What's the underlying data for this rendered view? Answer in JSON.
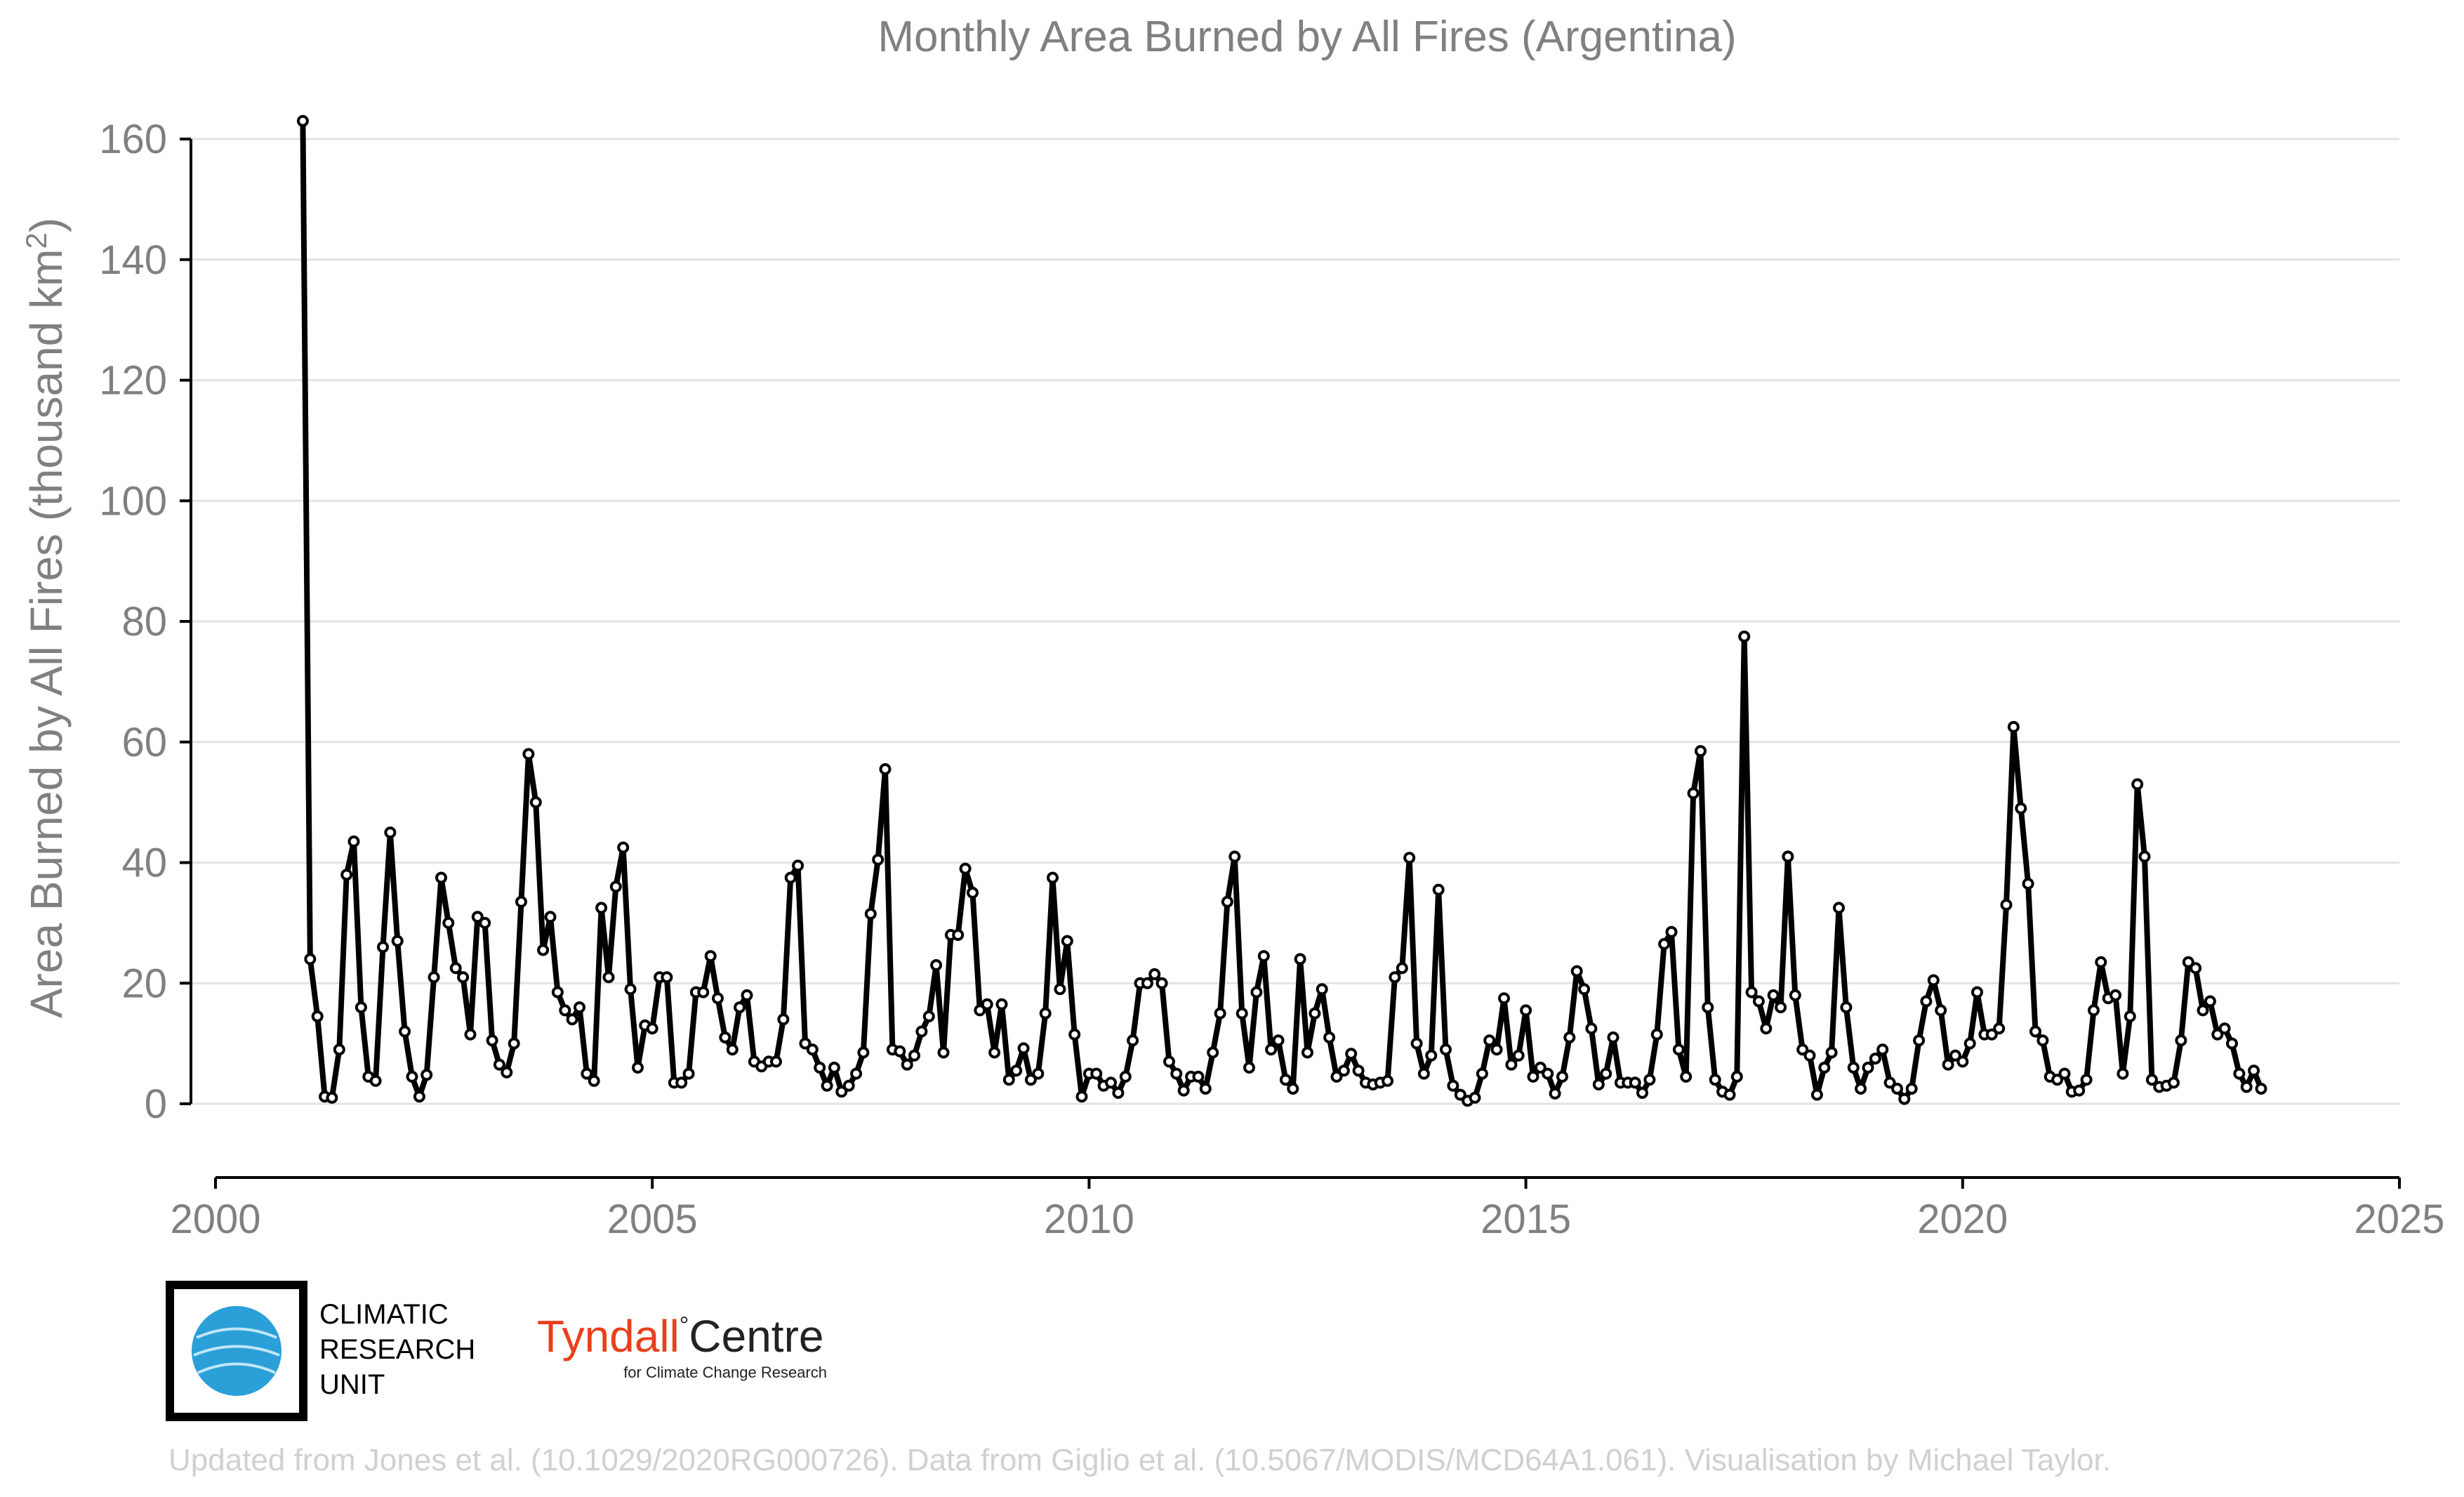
{
  "chart_data": {
    "type": "line",
    "title": "Monthly Area Burned by All Fires (Argentina)",
    "ylabel": "Area Burned by All Fires (thousand km²)",
    "xlabel": "",
    "xlim": [
      2000,
      2025
    ],
    "ylim": [
      -12,
      165
    ],
    "xticks": [
      2000,
      2005,
      2010,
      2015,
      2020,
      2025
    ],
    "yticks": [
      0,
      20,
      40,
      60,
      80,
      100,
      120,
      140,
      160
    ],
    "grid": true,
    "start_month": "2001-01",
    "series": [
      {
        "values": [
          163,
          24,
          14.5,
          1.2,
          1,
          9,
          38,
          43.5,
          16,
          4.5,
          3.8,
          26,
          45,
          27,
          12,
          4.5,
          1.2,
          4.8,
          21,
          37.5,
          30,
          22.5,
          21,
          11.5,
          31,
          30,
          10.5,
          6.5,
          5.2,
          10,
          33.5,
          58,
          50,
          25.5,
          31,
          18.5,
          15.5,
          14,
          16,
          5,
          3.8,
          32.5,
          21,
          36,
          42.5,
          19,
          6,
          13,
          12.5,
          21,
          21,
          3.5,
          3.5,
          5,
          18.5,
          18.5,
          24.5,
          17.5,
          11,
          9,
          16,
          18,
          7,
          6.2,
          7,
          7,
          14,
          37.5,
          39.5,
          10,
          9,
          6,
          3,
          6,
          2,
          3,
          5,
          8.5,
          31.5,
          40.5,
          55.5,
          9,
          8.7,
          6.5,
          8,
          12,
          14.5,
          23,
          8.5,
          28,
          28,
          39,
          35,
          15.5,
          16.5,
          8.5,
          16.5,
          4,
          5.5,
          9.2,
          4,
          5,
          15,
          37.5,
          19,
          27,
          11.5,
          1.2,
          5,
          5,
          3,
          3.5,
          1.8,
          4.5,
          10.5,
          20,
          20,
          21.5,
          20,
          7,
          5,
          2.2,
          4.5,
          4.5,
          2.5,
          8.5,
          15,
          33.5,
          41,
          15,
          6,
          18.5,
          24.5,
          9,
          10.5,
          4,
          2.5,
          24,
          8.5,
          15,
          19,
          11,
          4.5,
          5.5,
          8.3,
          5.5,
          3.5,
          3.2,
          3.5,
          3.8,
          21,
          22.5,
          40.8,
          10,
          5,
          8,
          35.5,
          9,
          3,
          1.5,
          0.5,
          1,
          5,
          10.5,
          9,
          17.5,
          6.5,
          8,
          15.5,
          4.5,
          6,
          5,
          1.7,
          4.5,
          11,
          22,
          19,
          12.5,
          3.2,
          5,
          11,
          3.5,
          3.5,
          3.5,
          1.8,
          4,
          11.5,
          26.5,
          28.5,
          9,
          4.5,
          51.5,
          58.5,
          16,
          4,
          2,
          1.5,
          4.5,
          77.5,
          18.5,
          17,
          12.5,
          18,
          16,
          41,
          18,
          9,
          8,
          1.5,
          6,
          8.5,
          32.5,
          16,
          6,
          2.5,
          6,
          7.5,
          9,
          3.5,
          2.5,
          0.8,
          2.5,
          10.5,
          17,
          20.5,
          15.5,
          6.5,
          8,
          7,
          10,
          18.5,
          11.5,
          11.5,
          12.5,
          33,
          62.5,
          49,
          36.5,
          12,
          10.5,
          4.5,
          4,
          5,
          2,
          2.2,
          4,
          15.5,
          23.5,
          17.5,
          18,
          5,
          14.5,
          53,
          41,
          4,
          2.8,
          3,
          3.5,
          10.5,
          23.5,
          22.5,
          15.5,
          17,
          11.5,
          12.5,
          10,
          5,
          2.8,
          5.5,
          2.5
        ]
      }
    ]
  },
  "logos": {
    "cru_lines": [
      "CLIMATIC",
      "RESEARCH",
      "UNIT"
    ],
    "tyndall_name": "Tyndall",
    "tyndall_degree": "°",
    "tyndall_centre": "Centre",
    "tyndall_sub": "for Climate Change Research"
  },
  "colors": {
    "tyndall_red": "#e8401c",
    "cru_globe": "#2a9fd8"
  },
  "footer": "Updated from Jones et al. (10.1029/2020RG000726). Data from Giglio et al. (10.5067/MODIS/MCD64A1.061). Visualisation by Michael Taylor."
}
